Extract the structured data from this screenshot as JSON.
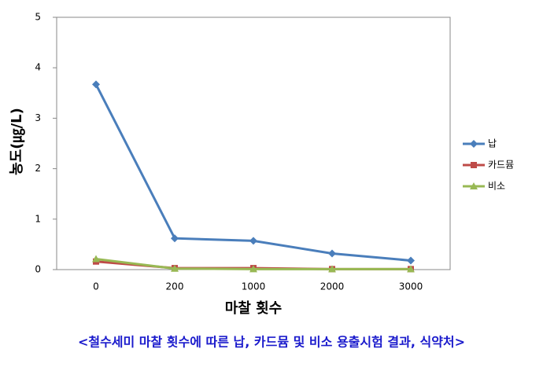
{
  "chart_data": {
    "type": "line",
    "caption": "<철수세미 마찰 횟수에 따른 납, 카드뮴 및 비소 용출시험 결과, 식약처>",
    "x_label": "마찰 횟수",
    "y_label": "농도(㎍/L)",
    "categories": [
      "0",
      "200",
      "1000",
      "2000",
      "3000"
    ],
    "series": [
      {
        "name": "납",
        "color": "#4a7ebb",
        "marker": "diamond",
        "values": [
          3.67,
          0.62,
          0.57,
          0.32,
          0.18
        ]
      },
      {
        "name": "카드뮴",
        "color": "#be4b48",
        "marker": "square",
        "values": [
          0.16,
          0.03,
          0.03,
          0.01,
          0.01
        ]
      },
      {
        "name": "비소",
        "color": "#98b954",
        "marker": "triangle",
        "values": [
          0.21,
          0.02,
          0.01,
          0.01,
          0.01
        ]
      }
    ],
    "ylim": [
      0,
      5
    ],
    "yticks": [
      0,
      1,
      2,
      3,
      4,
      5
    ],
    "grid": false,
    "legend": "right"
  }
}
